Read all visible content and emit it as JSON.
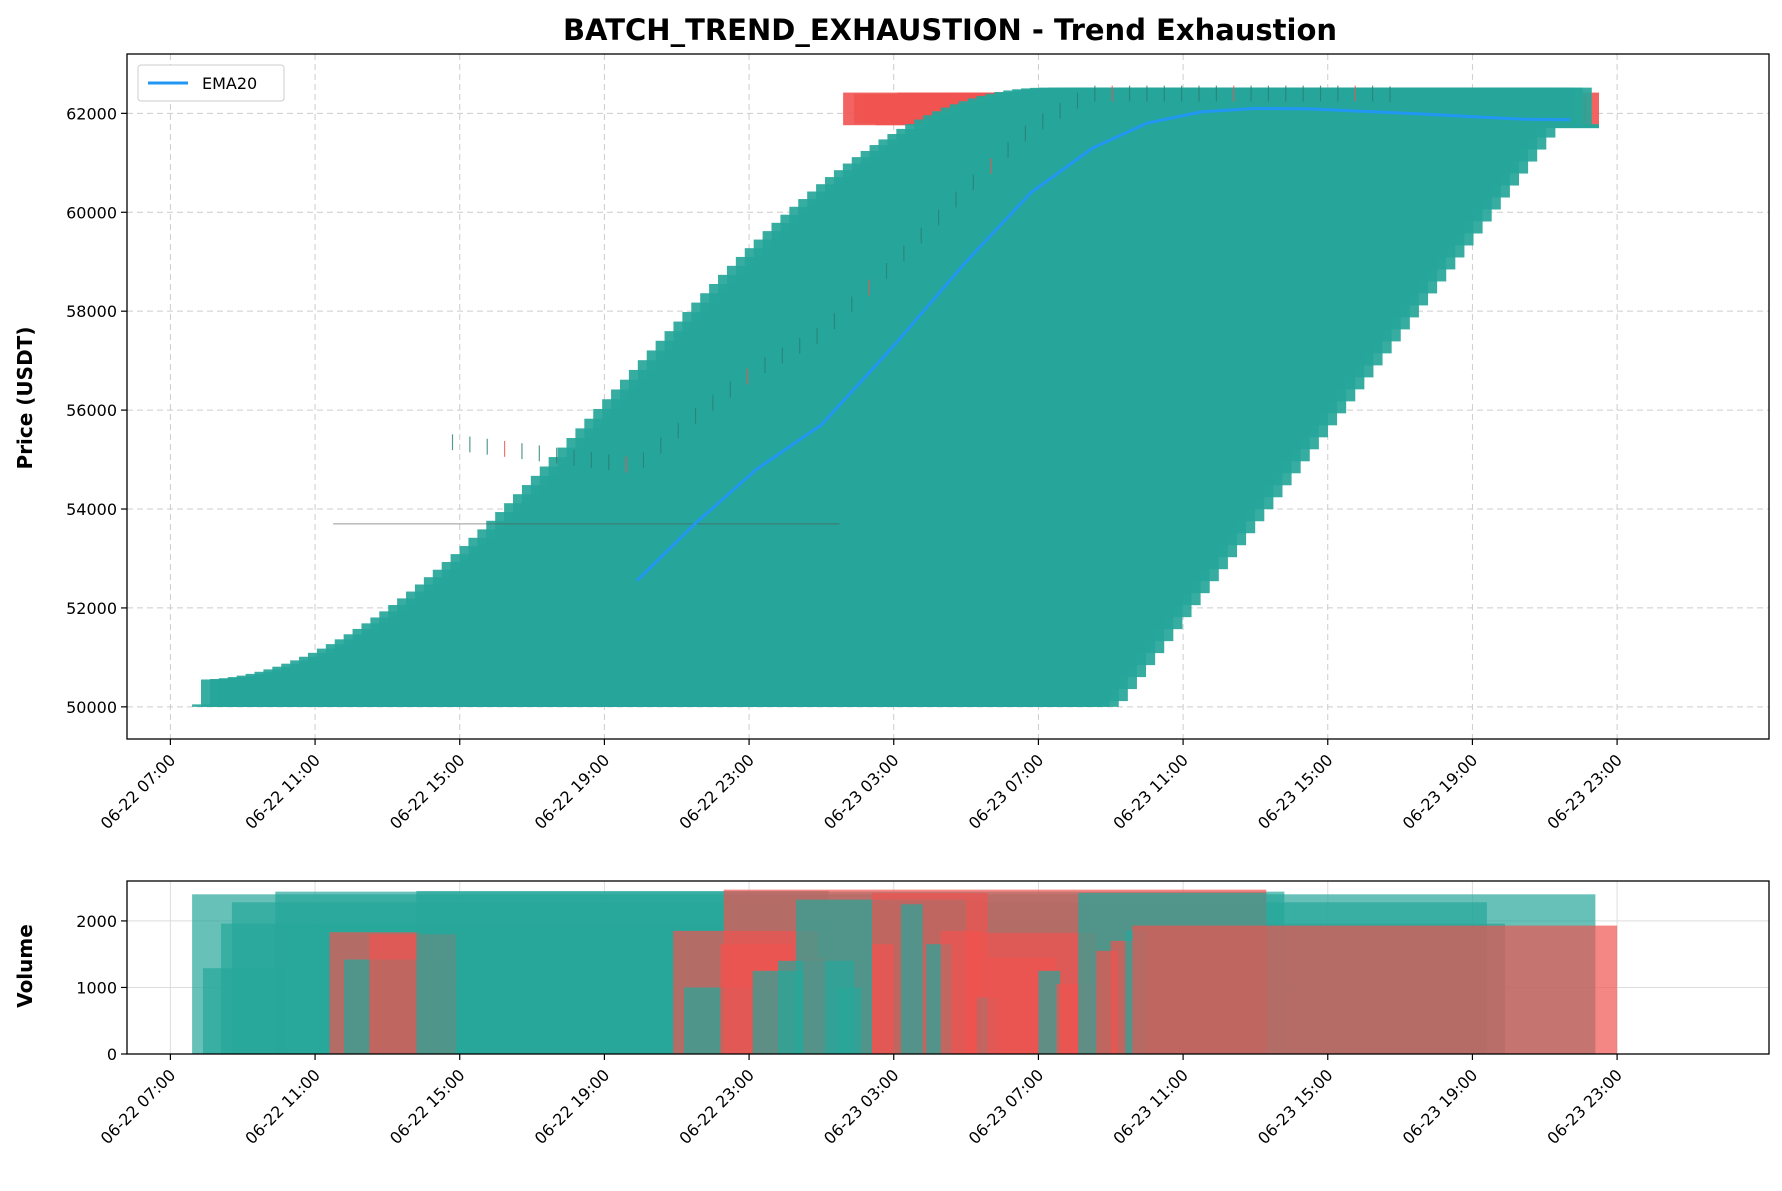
{
  "colors": {
    "up": "#26a69a",
    "down": "#ef5350",
    "ema": "#2196f3"
  },
  "chart_data": [
    {
      "type": "candlestick",
      "title": "BATCH_TREND_EXHAUSTION - Trend Exhaustion",
      "ylabel": "Price (USDT)",
      "ylim": [
        49350,
        63200
      ],
      "yticks": [
        50000,
        52000,
        54000,
        56000,
        58000,
        60000,
        62000
      ],
      "xlim_hours": [
        -1.2,
        44.2
      ],
      "xticks": [
        "06-22 07:00",
        "06-22 11:00",
        "06-22 15:00",
        "06-22 19:00",
        "06-22 23:00",
        "06-23 03:00",
        "06-23 07:00",
        "06-23 11:00",
        "06-23 15:00",
        "06-23 19:00",
        "06-23 23:00"
      ],
      "grid": true,
      "legend": {
        "position": "top-left",
        "entries": [
          "EMA20"
        ]
      },
      "series": [
        {
          "name": "EMA20",
          "x_hours": [
            12.9,
            14.5,
            16.2,
            18.0,
            20.0,
            22.0,
            23.8,
            25.5,
            27.0,
            28.5,
            30.0,
            31.5,
            33.0,
            34.5,
            36.0,
            37.5,
            38.7
          ],
          "values": [
            52550,
            53700,
            54800,
            55700,
            57300,
            59000,
            60400,
            61300,
            61800,
            62030,
            62100,
            62090,
            62040,
            61990,
            61930,
            61880,
            61870
          ]
        }
      ],
      "up_candles_summary": {
        "start_hours": 0.6,
        "end_hours": 25.0,
        "open_start": 50050,
        "close_end": 62420
      },
      "down_candles_summary": {
        "start_hours": 18.6,
        "end_hours": 39.5,
        "high_max": 62550,
        "low_min": 61700
      }
    },
    {
      "type": "bar",
      "ylabel": "Volume",
      "ylim": [
        0,
        2600
      ],
      "yticks": [
        0,
        1000,
        2000
      ],
      "xticks": [
        "06-22 07:00",
        "06-22 11:00",
        "06-22 15:00",
        "06-22 19:00",
        "06-22 23:00",
        "06-23 03:00",
        "06-23 07:00",
        "06-23 11:00",
        "06-23 15:00",
        "06-23 19:00",
        "06-23 23:00"
      ],
      "grid": true,
      "bars": [
        {
          "x0": 0.6,
          "x1": 39.4,
          "value": 2400,
          "dir": "up"
        },
        {
          "x0": 0.9,
          "x1": 3.2,
          "value": 1290,
          "dir": "up"
        },
        {
          "x0": 1.4,
          "x1": 36.9,
          "value": 1960,
          "dir": "up"
        },
        {
          "x0": 1.7,
          "x1": 36.4,
          "value": 2280,
          "dir": "up"
        },
        {
          "x0": 2.9,
          "x1": 30.8,
          "value": 2440,
          "dir": "up"
        },
        {
          "x0": 4.4,
          "x1": 6.9,
          "value": 1830,
          "dir": "down"
        },
        {
          "x0": 4.8,
          "x1": 7.8,
          "value": 1420,
          "dir": "up"
        },
        {
          "x0": 5.5,
          "x1": 7.9,
          "value": 1800,
          "dir": "down"
        },
        {
          "x0": 6.8,
          "x1": 18.2,
          "value": 2450,
          "dir": "up"
        },
        {
          "x0": 13.9,
          "x1": 17.9,
          "value": 1850,
          "dir": "down"
        },
        {
          "x0": 14.2,
          "x1": 16.7,
          "value": 1000,
          "dir": "up"
        },
        {
          "x0": 15.2,
          "x1": 17.2,
          "value": 1650,
          "dir": "down"
        },
        {
          "x0": 15.3,
          "x1": 30.3,
          "value": 2470,
          "dir": "down"
        },
        {
          "x0": 16.1,
          "x1": 17.5,
          "value": 1250,
          "dir": "up"
        },
        {
          "x0": 16.8,
          "x1": 18.9,
          "value": 1400,
          "dir": "up"
        },
        {
          "x0": 17.5,
          "x1": 18.1,
          "value": 1450,
          "dir": "down"
        },
        {
          "x0": 17.3,
          "x1": 22.0,
          "value": 2320,
          "dir": "up"
        },
        {
          "x0": 18.4,
          "x1": 19.1,
          "value": 1000,
          "dir": "up"
        },
        {
          "x0": 19.4,
          "x1": 20.0,
          "value": 1650,
          "dir": "down"
        },
        {
          "x0": 19.4,
          "x1": 22.6,
          "value": 2420,
          "dir": "down"
        },
        {
          "x0": 20.2,
          "x1": 20.8,
          "value": 2250,
          "dir": "up"
        },
        {
          "x0": 20.9,
          "x1": 21.6,
          "value": 1650,
          "dir": "up"
        },
        {
          "x0": 21.3,
          "x1": 22.4,
          "value": 1850,
          "dir": "down"
        },
        {
          "x0": 22.3,
          "x1": 22.9,
          "value": 850,
          "dir": "up"
        },
        {
          "x0": 22.6,
          "x1": 24.5,
          "value": 1450,
          "dir": "down"
        },
        {
          "x0": 22.0,
          "x1": 25.6,
          "value": 1820,
          "dir": "down"
        },
        {
          "x0": 24.0,
          "x1": 24.6,
          "value": 1250,
          "dir": "up"
        },
        {
          "x0": 24.5,
          "x1": 25.5,
          "value": 1050,
          "dir": "down"
        },
        {
          "x0": 25.1,
          "x1": 30.3,
          "value": 2420,
          "dir": "up"
        },
        {
          "x0": 25.6,
          "x1": 26.2,
          "value": 1550,
          "dir": "down"
        },
        {
          "x0": 26.0,
          "x1": 26.6,
          "value": 1700,
          "dir": "down"
        },
        {
          "x0": 26.4,
          "x1": 27.0,
          "value": 1850,
          "dir": "up"
        },
        {
          "x0": 26.6,
          "x1": 40.0,
          "value": 1930,
          "dir": "down"
        }
      ]
    }
  ]
}
